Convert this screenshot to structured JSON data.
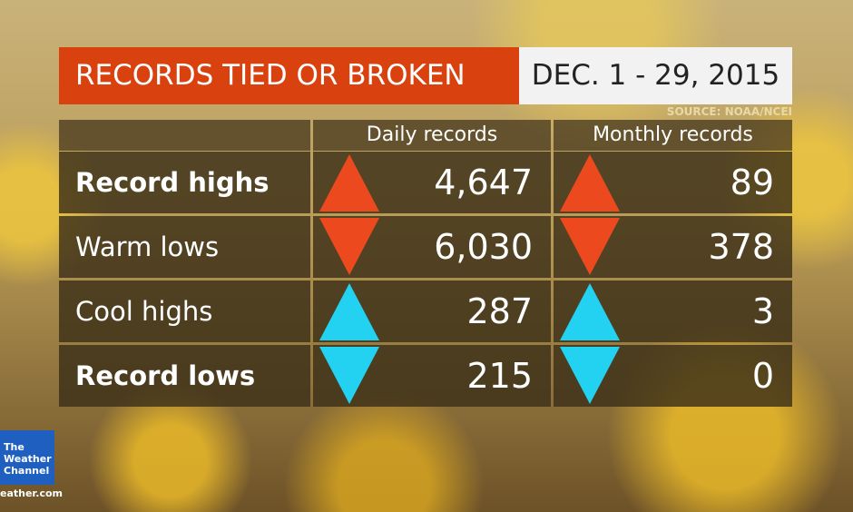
{
  "header": {
    "title": "RECORDS TIED OR BROKEN",
    "date": "DEC. 1 - 29, 2015",
    "source": "SOURCE: NOAA/NCEI"
  },
  "table": {
    "columns": [
      "Daily records",
      "Monthly records"
    ],
    "rows": [
      {
        "label": "Record highs",
        "daily": "4,647",
        "monthly": "89"
      },
      {
        "label": "Warm lows",
        "daily": "6,030",
        "monthly": "378"
      },
      {
        "label": "Cool highs",
        "daily": "287",
        "monthly": "3"
      },
      {
        "label": "Record lows",
        "daily": "215",
        "monthly": "0"
      }
    ]
  },
  "logo": {
    "lines": [
      "The",
      "Weather",
      "Channel"
    ],
    "url": "eather.com"
  }
}
